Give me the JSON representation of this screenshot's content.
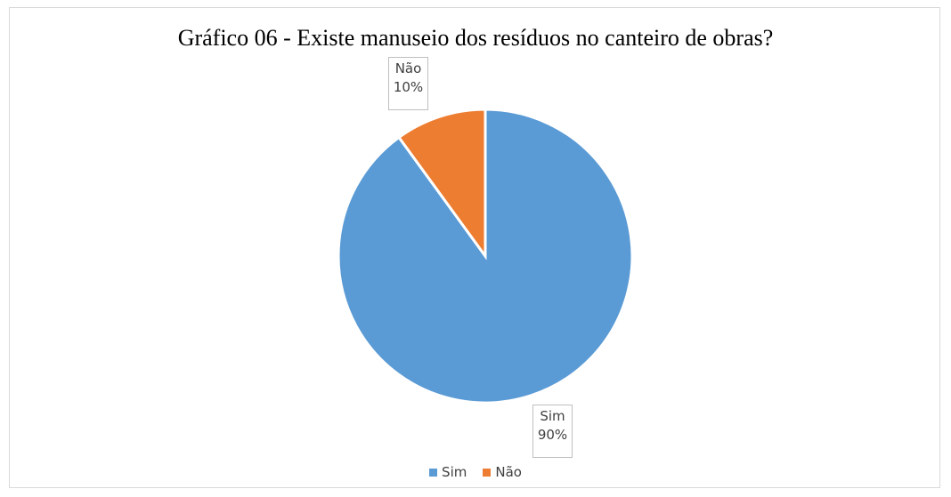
{
  "chart_data": {
    "type": "pie",
    "title": "Gráfico 06 - Existe manuseio dos resíduos no canteiro de obras?",
    "categories": [
      "Sim",
      "Não"
    ],
    "values": [
      90,
      10
    ],
    "data_labels": [
      {
        "category": "Sim",
        "value": "90%"
      },
      {
        "category": "Não",
        "value": "10%"
      }
    ],
    "colors": [
      "#5b9bd5",
      "#ed7d31"
    ],
    "legend": {
      "position": "bottom",
      "entries": [
        "Sim",
        "Não"
      ]
    }
  }
}
